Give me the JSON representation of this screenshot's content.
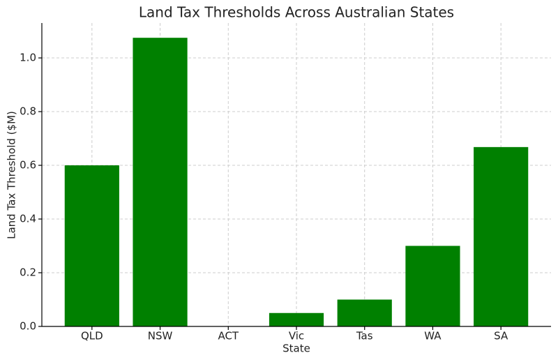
{
  "chart_data": {
    "type": "bar",
    "title": "Land Tax Thresholds Across Australian States",
    "x_label": "State",
    "y_label": "Land Tax Threshold ($M)",
    "categories": [
      "QLD",
      "NSW",
      "ACT",
      "Vic",
      "Tas",
      "WA",
      "SA"
    ],
    "values": [
      0.6,
      1.075,
      0,
      0.05,
      0.1,
      0.3,
      0.668
    ],
    "color": "#008000",
    "ylim": [
      0,
      1.13
    ],
    "yticks": [
      {
        "value": 0,
        "label": "0.0"
      },
      0.2,
      0.4,
      0.6,
      0.8,
      {
        "value": 1,
        "label": "1.0"
      }
    ],
    "grid": true
  }
}
